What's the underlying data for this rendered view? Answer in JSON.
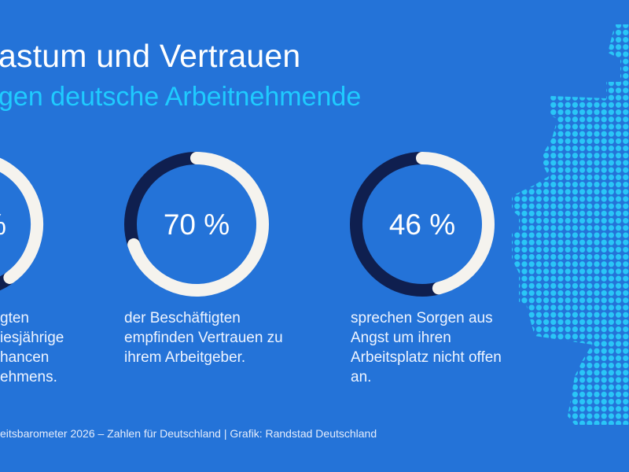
{
  "header": {
    "title": "astum und Vertrauen",
    "subtitle": "gen deutsche Arbeitnehmende"
  },
  "colors": {
    "background": "#2473d8",
    "ring_value": "#f5f3ee",
    "ring_rest": "#0f1f4f",
    "subtitle": "#1fcbff",
    "map_dots": "#2ac6f7"
  },
  "chart_data": {
    "type": "pie",
    "style": "donut",
    "items": [
      {
        "label": "%",
        "value": null,
        "description": [
          "gten",
          "iesjährige",
          "hancen",
          "ehmens."
        ]
      },
      {
        "label": "70 %",
        "value": 70,
        "description": [
          "der Beschäftigten",
          "empfinden Vertrauen zu",
          "ihrem Arbeitgeber."
        ]
      },
      {
        "label": "46 %",
        "value": 46,
        "description": [
          "sprechen Sorgen aus",
          "Angst um ihren",
          "Arbeitsplatz nicht offen",
          "an."
        ]
      }
    ]
  },
  "footer": {
    "source": "eitsbarometer 2026 – Zahlen für Deutschland | Grafik: Randstad Deutschland"
  }
}
